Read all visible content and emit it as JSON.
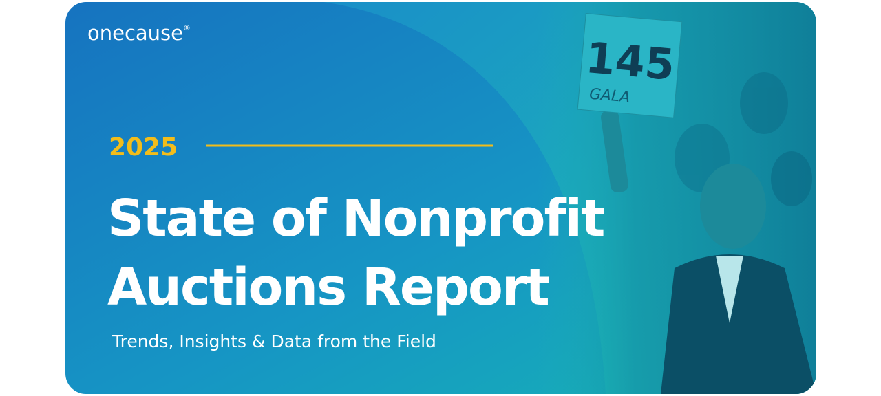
{
  "brand": {
    "name": "onecause",
    "mark": "®"
  },
  "banner": {
    "year": "2025",
    "title_lines": [
      "State of Nonprofit",
      "Auctions Report"
    ],
    "subtitle": "Trends, Insights & Data from the Field"
  },
  "photo": {
    "paddle_number": "145",
    "paddle_text": "GALA"
  }
}
